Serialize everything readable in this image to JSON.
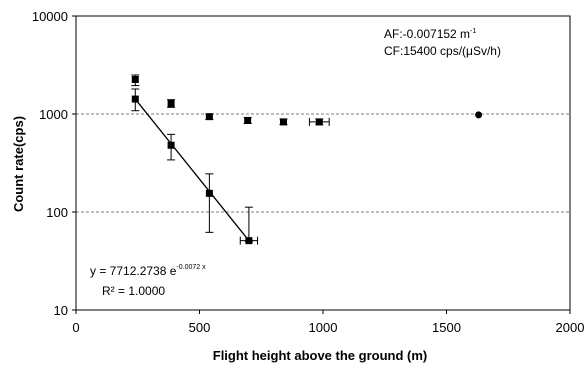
{
  "chart_data": {
    "type": "scatter",
    "xlabel": "Flight height above the ground (m)",
    "ylabel": "Count rate(cps)",
    "xlim": [
      0,
      2000
    ],
    "ylim": [
      10,
      10000
    ],
    "yscale": "log",
    "x_ticks": [
      "0",
      "500",
      "1000",
      "1500",
      "2000"
    ],
    "y_ticks": [
      "10",
      "100",
      "1000",
      "10000"
    ],
    "grid": "horizontal dashed at 100 and 1000",
    "annotations": {
      "af_prefix": "AF:-0.007152 m",
      "af_sup": "-1",
      "cf": "CF:15400 cps/(μSv/h)",
      "eq_prefix": "y = 7712.2738 e",
      "eq_sup": "-0.0072 x",
      "r2": "R² = 1.0000"
    },
    "series": [
      {
        "marker": "square",
        "points": [
          {
            "x": 240,
            "y": 2250,
            "ylow": 1950,
            "yhigh": 2500,
            "xerr": 0
          },
          {
            "x": 385,
            "y": 1280,
            "ylow": 1170,
            "yhigh": 1400,
            "xerr": 0
          },
          {
            "x": 540,
            "y": 940,
            "ylow": 880,
            "yhigh": 1000,
            "xerr": 0
          },
          {
            "x": 695,
            "y": 860,
            "ylow": 800,
            "yhigh": 920,
            "xerr": 0
          },
          {
            "x": 840,
            "y": 830,
            "ylow": 780,
            "yhigh": 890,
            "xerr": 0
          },
          {
            "x": 985,
            "y": 830,
            "ylow": 780,
            "yhigh": 890,
            "xerr": 40
          }
        ]
      },
      {
        "marker": "circle",
        "points": [
          {
            "x": 1630,
            "y": 980
          }
        ]
      },
      {
        "marker": "square",
        "points": [
          {
            "x": 240,
            "y": 1420,
            "ylow": 1080,
            "yhigh": 1800,
            "xerr": 0
          },
          {
            "x": 385,
            "y": 480,
            "ylow": 340,
            "yhigh": 620,
            "xerr": 0
          },
          {
            "x": 540,
            "y": 155,
            "ylow": 62,
            "yhigh": 245,
            "xerr": 0
          },
          {
            "x": 700,
            "y": 51,
            "ylow": 50,
            "yhigh": 112,
            "xerr": 35
          }
        ]
      }
    ],
    "fit_line": {
      "x1": 240,
      "y1": 1420,
      "x2": 700,
      "y2": 51
    }
  }
}
